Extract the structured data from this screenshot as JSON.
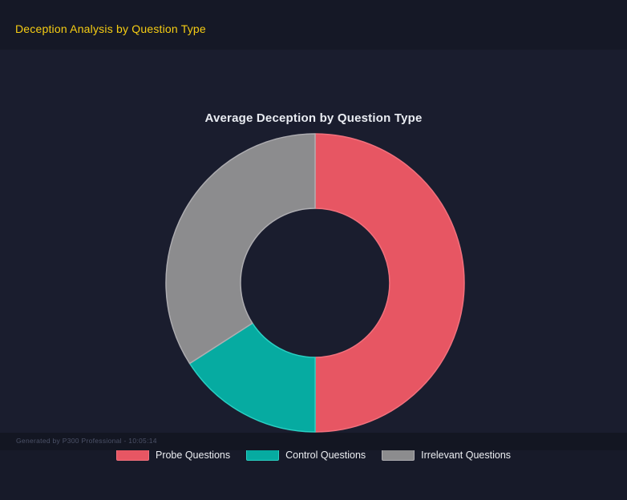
{
  "page": {
    "title": "Deception Analysis by Question Type"
  },
  "chart_data": {
    "type": "pie",
    "subtype": "donut",
    "title": "Average Deception by Question Type",
    "categories": [
      "Probe Questions",
      "Control Questions",
      "Irrelevant Questions"
    ],
    "values_pct": [
      50.0,
      15.9,
      34.1
    ],
    "colors": [
      "#e75663",
      "#06aba1",
      "#8c8c8e"
    ],
    "border_colors": [
      "#f2717d",
      "#2ad0c3",
      "#aeadb1"
    ],
    "start_angle_deg": 0,
    "direction": "clockwise",
    "inner_radius_ratio": 0.5,
    "legend_position": "bottom",
    "grid": false
  },
  "footer": {
    "text": "Generated by P300 Professional - 10:05:14"
  },
  "colors": {
    "background": "#171a29",
    "header_bar": "#151826",
    "chart_panel": "#1a1d2e",
    "footer_bar": "#131622",
    "page_title": "#f6cd13",
    "chart_title": "#e9ecf2"
  }
}
